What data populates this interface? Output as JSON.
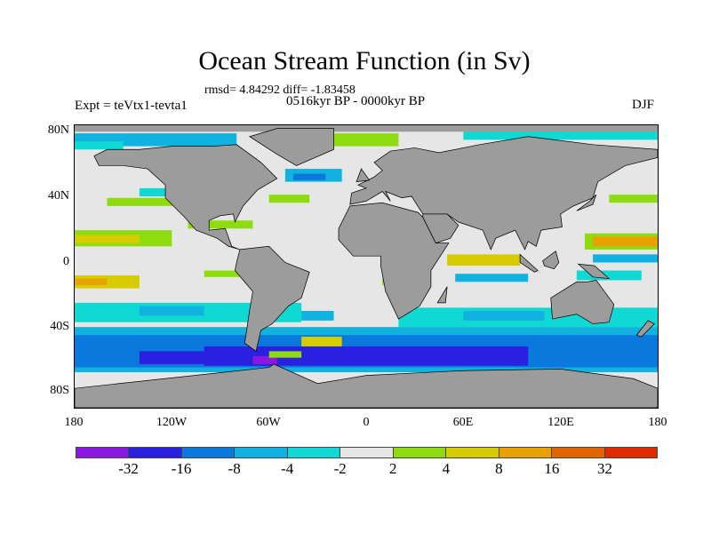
{
  "title": "Ocean Stream Function (in Sv)",
  "stats": "rmsd= 4.84292 diff= -1.83458",
  "experiment": "Expt = teVtx1-tevta1",
  "period": "0516kyr BP - 0000kyr BP",
  "season": "DJF",
  "map": {
    "lat_labels": [
      "80N",
      "40N",
      "0",
      "40S",
      "80S"
    ],
    "lon_labels": [
      "180",
      "120W",
      "60W",
      "0",
      "60E",
      "120E",
      "180"
    ],
    "land_color": "#9c9c9c",
    "ocean_background": "#e6e6e6"
  },
  "colorbar": {
    "colors": [
      "#8a18e0",
      "#2a20e0",
      "#0a78dc",
      "#12b2e0",
      "#10d8d2",
      "#e6e6e6",
      "#8edc10",
      "#d6cc00",
      "#e8a200",
      "#e06400",
      "#e02a00"
    ],
    "labels": [
      "-32",
      "-16",
      "-8",
      "-4",
      "-2",
      "2",
      "4",
      "8",
      "16",
      "32"
    ]
  }
}
